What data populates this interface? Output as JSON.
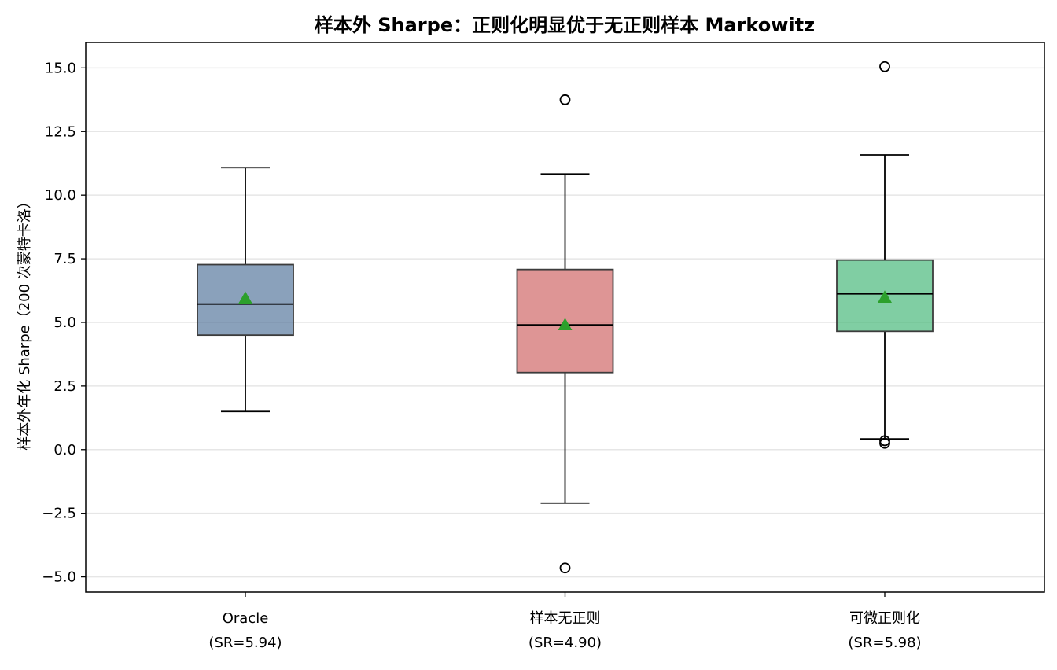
{
  "chart_data": {
    "type": "box",
    "title": "样本外 Sharpe：正则化明显优于无正则样本 Markowitz",
    "xlabel": "",
    "ylabel": "样本外年化 Sharpe（200 次蒙特卡洛）",
    "ylim": [
      -5.6,
      16.0
    ],
    "yticks": [
      -5.0,
      -2.5,
      0.0,
      2.5,
      5.0,
      7.5,
      10.0,
      12.5,
      15.0
    ],
    "ytick_labels": [
      "−5.0",
      "−2.5",
      "0.0",
      "2.5",
      "5.0",
      "7.5",
      "10.0",
      "12.5",
      "15.0"
    ],
    "grid": {
      "y": true,
      "x": false
    },
    "categories": [
      {
        "name": "Oracle",
        "sub": "(SR=5.94)"
      },
      {
        "name": "样本无正则",
        "sub": "(SR=4.90)"
      },
      {
        "name": "可微正则化",
        "sub": "(SR=5.98)"
      }
    ],
    "boxes": [
      {
        "whisker_low": 1.5,
        "q1": 4.5,
        "median": 5.72,
        "q3": 7.27,
        "whisker_high": 11.08,
        "mean": 5.94,
        "outliers": [],
        "color": "#4b6f96"
      },
      {
        "whisker_low": -2.1,
        "q1": 3.03,
        "median": 4.9,
        "q3": 7.08,
        "whisker_high": 10.83,
        "mean": 4.9,
        "outliers": [
          13.75,
          -4.65
        ],
        "color": "#cd5c5c"
      },
      {
        "whisker_low": 0.42,
        "q1": 4.65,
        "median": 6.12,
        "q3": 7.45,
        "whisker_high": 11.58,
        "mean": 5.98,
        "outliers": [
          15.05,
          0.35,
          0.25
        ],
        "color": "#3cb371"
      }
    ],
    "mean_marker_color": "#2ca02c"
  }
}
